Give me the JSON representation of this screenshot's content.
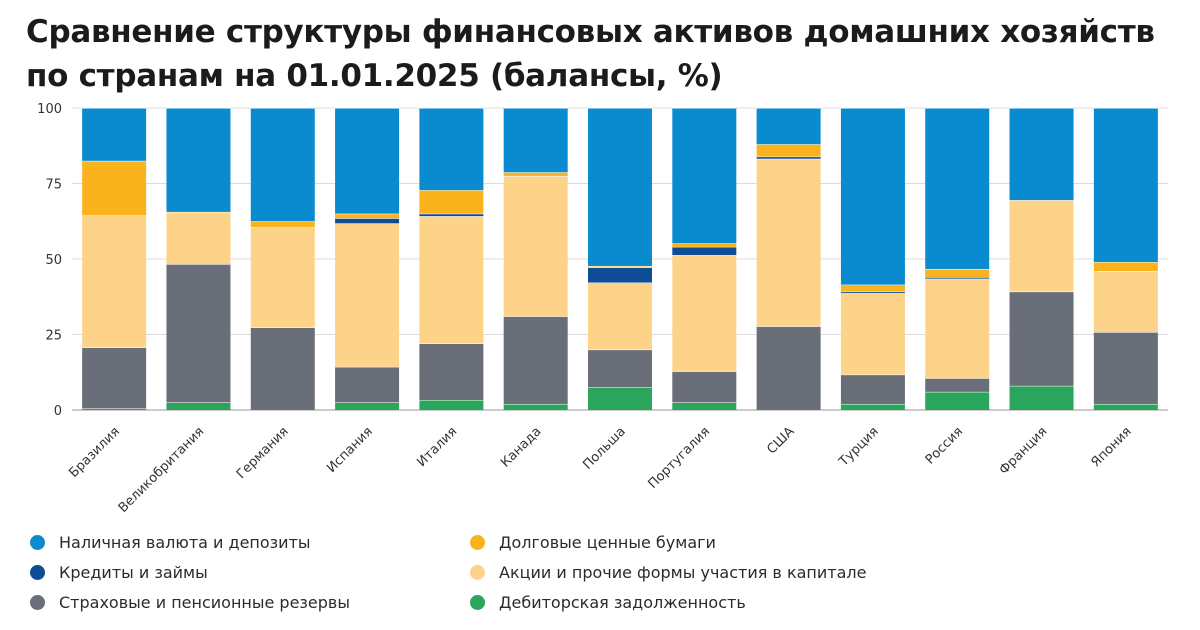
{
  "title": "Сравнение структуры финансовых активов домашних хозяйств по странам на 01.01.2025 (балансы, %)",
  "chart_data": {
    "type": "bar",
    "stacked": true,
    "title": "Сравнение структуры финансовых активов домашних хозяйств по странам на 01.01.2025 (балансы, %)",
    "xlabel": "",
    "ylabel": "",
    "ylim": [
      0,
      100
    ],
    "yticks": [
      "0",
      "25",
      "50",
      "75",
      "100"
    ],
    "grid": true,
    "legend_position": "bottom",
    "categories": [
      "Бразилия",
      "Великобритания",
      "Германия",
      "Испания",
      "Италия",
      "Канада",
      "Польша",
      "Португалия",
      "США",
      "Турция",
      "Россия",
      "Франция",
      "Япония"
    ],
    "series": [
      {
        "name": "Дебиторская задолженность",
        "color": "#2aa65c",
        "values": [
          0.5,
          2.5,
          0,
          2.5,
          3.3,
          2,
          7.5,
          2.5,
          0,
          2,
          6,
          8,
          2
        ]
      },
      {
        "name": "Страховые и пенсионные резервы",
        "color": "#6a6e78",
        "values": [
          20.2,
          45.8,
          27.3,
          11.8,
          18.7,
          29,
          12.5,
          10.3,
          27.7,
          9.7,
          4.5,
          31.2,
          23.8
        ]
      },
      {
        "name": "Акции и прочие формы участия в капитале",
        "color": "#fdd38a",
        "values": [
          43.7,
          17,
          33.2,
          47.5,
          42.2,
          46.5,
          22.2,
          38.5,
          55.5,
          27,
          33,
          30.3,
          20.2
        ]
      },
      {
        "name": "Кредиты и займы",
        "color": "#0f4c96",
        "values": [
          0,
          0,
          0,
          1.7,
          0.8,
          0,
          5,
          2.7,
          0.7,
          0.5,
          0.5,
          0,
          0
        ]
      },
      {
        "name": "Долговые ценные бумаги",
        "color": "#fbb31d",
        "values": [
          18.1,
          0.3,
          2,
          1.5,
          7.8,
          1.2,
          0.5,
          1.2,
          4.1,
          2.3,
          2.7,
          0,
          3
        ]
      },
      {
        "name": "Наличная валюта и депозиты",
        "color": "#0a8bd0",
        "values": [
          17.5,
          34.4,
          37.5,
          35,
          27.2,
          21.3,
          52.3,
          44.8,
          12,
          58.5,
          53.3,
          30.5,
          51
        ]
      }
    ]
  },
  "legend": [
    {
      "label": "Наличная валюта и депозиты",
      "color": "#0a8bd0"
    },
    {
      "label": "Долговые ценные бумаги",
      "color": "#fbb31d"
    },
    {
      "label": "Кредиты и займы",
      "color": "#0f4c96"
    },
    {
      "label": "Акции и прочие формы участия в капитале",
      "color": "#fdd38a"
    },
    {
      "label": "Страховые и пенсионные резервы",
      "color": "#6a6e78"
    },
    {
      "label": "Дебиторская задолженность",
      "color": "#2aa65c"
    }
  ]
}
